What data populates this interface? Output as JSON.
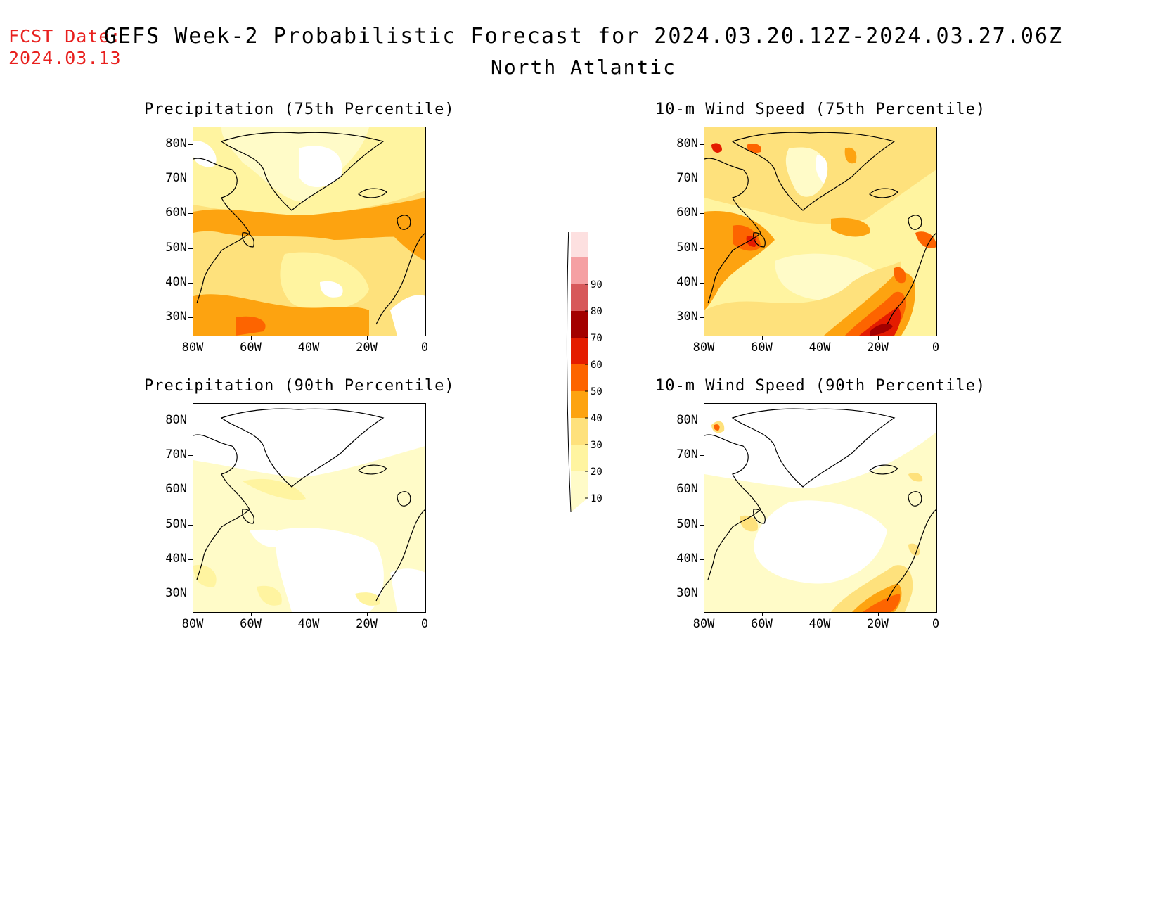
{
  "header": {
    "fcst_label": "FCST Date:",
    "fcst_date": "2024.03.13",
    "title": "GEFS Week-2 Probabilistic Forecast for 2024.03.20.12Z-2024.03.27.06Z",
    "region": "North Atlantic"
  },
  "colors": {
    "title_red": "#e8201e",
    "land_line": "#000000"
  },
  "axes": {
    "lat_labels": [
      "80N",
      "70N",
      "60N",
      "50N",
      "40N",
      "30N"
    ],
    "lon_labels": [
      "80W",
      "60W",
      "40W",
      "20W",
      "0"
    ]
  },
  "panels": [
    {
      "id": "precip-75",
      "title": "Precipitation (75th Percentile)"
    },
    {
      "id": "wind-75",
      "title": "10-m Wind Speed (75th Percentile)"
    },
    {
      "id": "precip-90",
      "title": "Precipitation (90th Percentile)"
    },
    {
      "id": "wind-90",
      "title": "10-m Wind Speed (90th Percentile)"
    }
  ],
  "colorbar": {
    "levels": [
      "10",
      "20",
      "30",
      "40",
      "50",
      "60",
      "70",
      "80",
      "90"
    ],
    "colors": [
      "#fffbc8",
      "#fff4a0",
      "#fee17c",
      "#fda310",
      "#fd6400",
      "#e41c00",
      "#a30000",
      "#d7585a",
      "#f5a0a3",
      "#fde0e0"
    ]
  }
}
